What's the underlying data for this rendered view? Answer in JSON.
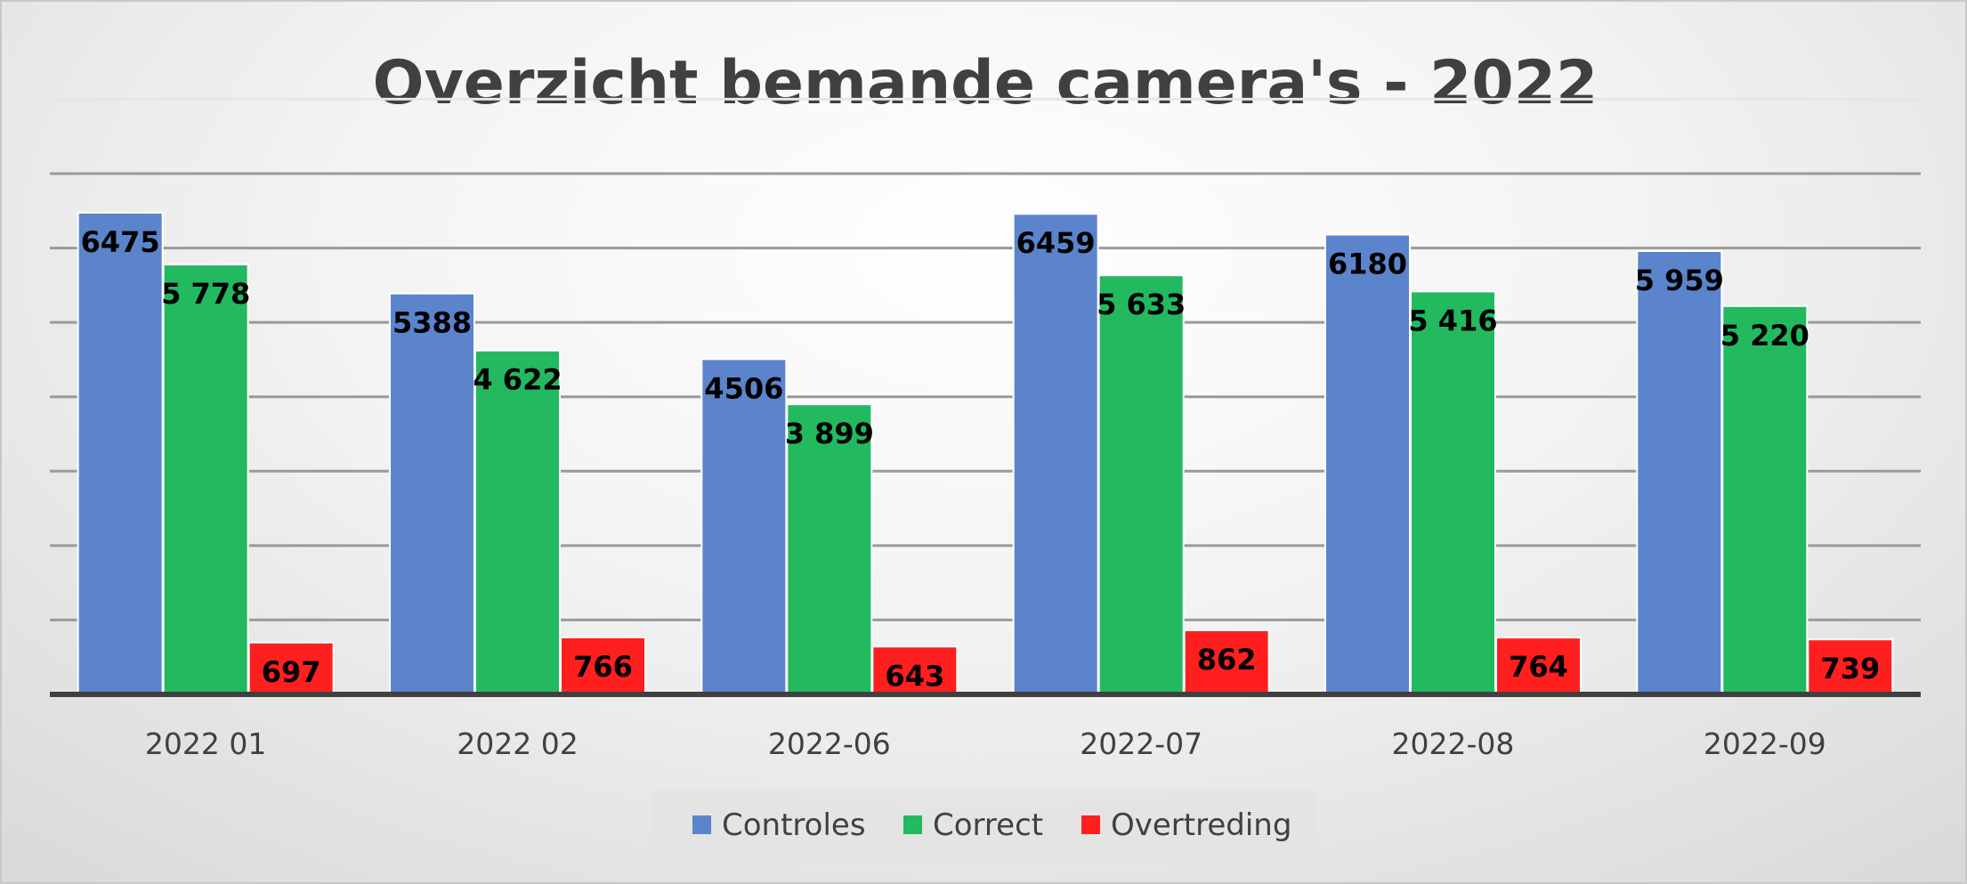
{
  "chart_data": {
    "type": "bar",
    "title": "Overzicht bemande camera's - 2022",
    "xlabel": "",
    "ylabel": "",
    "categories": [
      "2022 01",
      "2022 02",
      "2022-06",
      "2022-07",
      "2022-08",
      "2022-09"
    ],
    "series": [
      {
        "name": "Controles",
        "color": "#5b84cc",
        "values": [
          6475,
          5388,
          4506,
          6459,
          6180,
          5959
        ],
        "labels": [
          "6475",
          "5388",
          "4506",
          "6459",
          "6180",
          "5 959"
        ]
      },
      {
        "name": "Correct",
        "color": "#22b95f",
        "values": [
          5778,
          4622,
          3899,
          5633,
          5416,
          5220
        ],
        "labels": [
          "5 778",
          "4 622",
          "3 899",
          "5 633",
          "5 416",
          "5 220"
        ]
      },
      {
        "name": "Overtreding",
        "color": "#ff1f1f",
        "values": [
          697,
          766,
          643,
          862,
          764,
          739
        ],
        "labels": [
          "697",
          "766",
          "643",
          "862",
          "764",
          "739"
        ]
      }
    ],
    "ylim": [
      0,
      7000
    ],
    "grid": true,
    "y_tick_labels_shown": false,
    "legend": "bottom"
  }
}
